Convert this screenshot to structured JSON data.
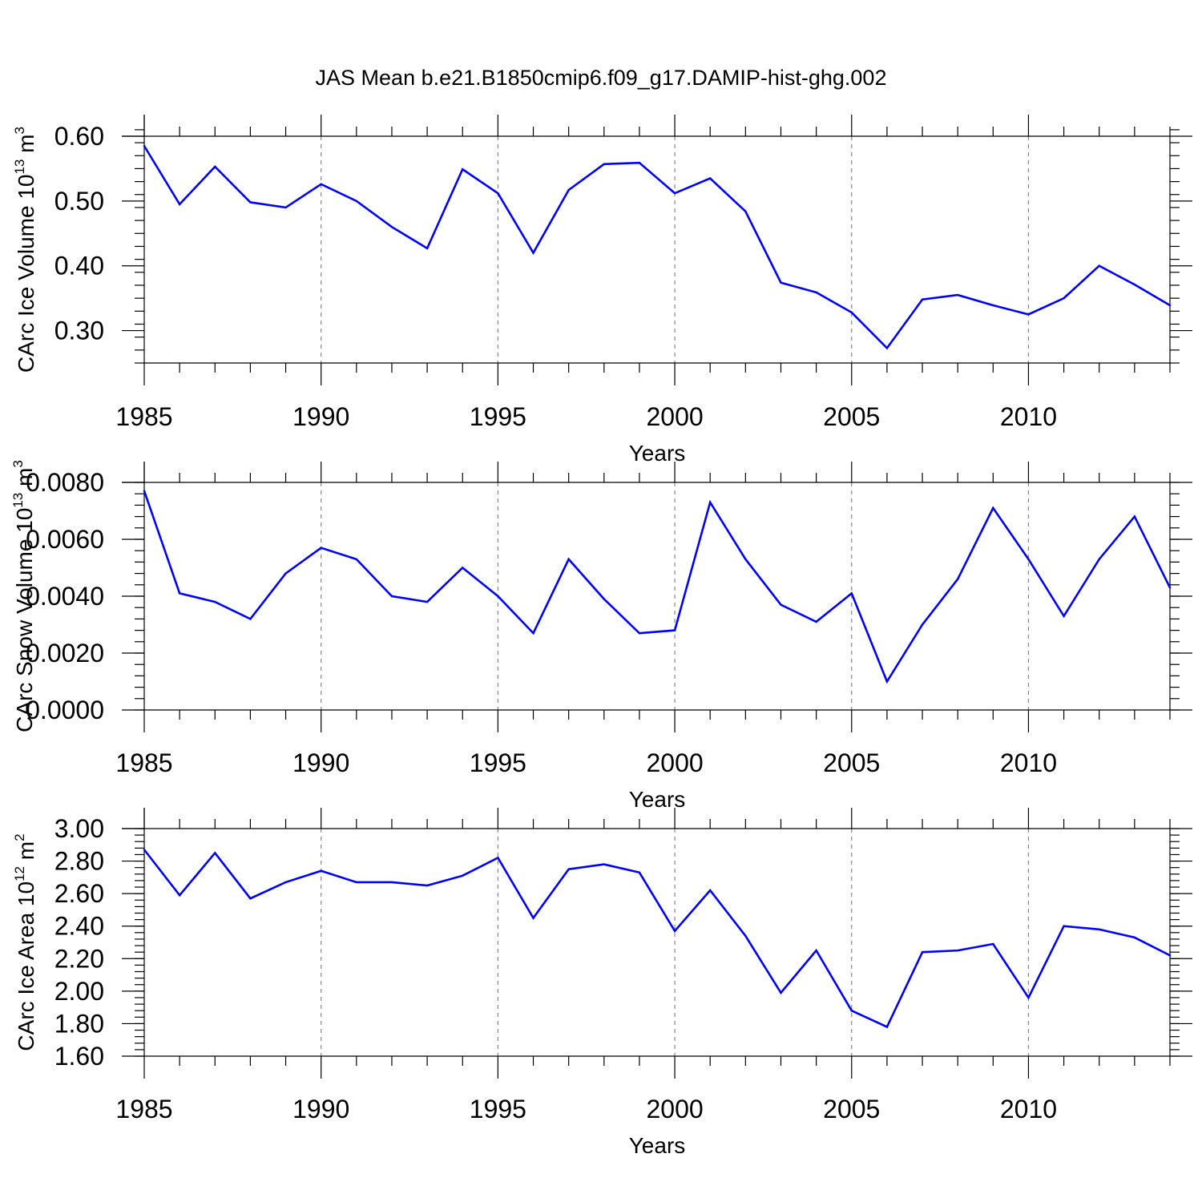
{
  "figure_title": "JAS Mean b.e21.B1850cmip6.f09_g17.DAMIP-hist-ghg.002",
  "colors": {
    "line": "#0000ff",
    "axis": "#000000",
    "grid": "#888888"
  },
  "chart_data": [
    {
      "type": "line",
      "title": "JAS Mean b.e21.B1850cmip6.f09_g17.DAMIP-hist-ghg.002",
      "xlabel": "Years",
      "ylabel": "CArc Ice Volume 10",
      "ylabel_exp": "13",
      "ylabel_unit": " m",
      "ylabel_unit_exp": "3",
      "xlim": [
        1985,
        2014
      ],
      "ylim": [
        0.25,
        0.6
      ],
      "yticks": [
        0.3,
        0.4,
        0.5,
        0.6
      ],
      "ytick_labels": [
        "0.30",
        "0.40",
        "0.50",
        "0.60"
      ],
      "yminor_step": 0.02,
      "xticks": [
        1985,
        1990,
        1995,
        2000,
        2005,
        2010
      ],
      "xtick_labels": [
        "1985",
        "1990",
        "1995",
        "2000",
        "2005",
        "2010"
      ],
      "grid": "vertical dashed at major x ticks",
      "x": [
        1985,
        1986,
        1987,
        1988,
        1989,
        1990,
        1991,
        1992,
        1993,
        1994,
        1995,
        1996,
        1997,
        1998,
        1999,
        2000,
        2001,
        2002,
        2003,
        2004,
        2005,
        2006,
        2007,
        2008,
        2009,
        2010,
        2011,
        2012,
        2013,
        2014
      ],
      "series": [
        {
          "name": "CArc Ice Volume",
          "values": [
            0.585,
            0.495,
            0.553,
            0.498,
            0.49,
            0.526,
            0.5,
            0.46,
            0.427,
            0.549,
            0.512,
            0.42,
            0.517,
            0.557,
            0.559,
            0.512,
            0.535,
            0.484,
            0.374,
            0.359,
            0.328,
            0.273,
            0.348,
            0.355,
            0.339,
            0.325,
            0.35,
            0.4,
            0.371,
            0.339
          ]
        }
      ]
    },
    {
      "type": "line",
      "xlabel": "Years",
      "ylabel": "CArc Snow Volume 10",
      "ylabel_exp": "13",
      "ylabel_unit": " m",
      "ylabel_unit_exp": "3",
      "xlim": [
        1985,
        2014
      ],
      "ylim": [
        0.0,
        0.008
      ],
      "yticks": [
        0.0,
        0.002,
        0.004,
        0.006,
        0.008
      ],
      "ytick_labels": [
        "0.0000",
        "0.0020",
        "0.0040",
        "0.0060",
        "0.0080"
      ],
      "yminor_step": 0.0004,
      "ymax_extent": 0.0087,
      "xticks": [
        1985,
        1990,
        1995,
        2000,
        2005,
        2010
      ],
      "xtick_labels": [
        "1985",
        "1990",
        "1995",
        "2000",
        "2005",
        "2010"
      ],
      "grid": "vertical dashed at major x ticks",
      "x": [
        1985,
        1986,
        1987,
        1988,
        1989,
        1990,
        1991,
        1992,
        1993,
        1994,
        1995,
        1996,
        1997,
        1998,
        1999,
        2000,
        2001,
        2002,
        2003,
        2004,
        2005,
        2006,
        2007,
        2008,
        2009,
        2010,
        2011,
        2012,
        2013,
        2014
      ],
      "series": [
        {
          "name": "CArc Snow Volume",
          "values": [
            0.0077,
            0.0041,
            0.0038,
            0.0032,
            0.0048,
            0.0057,
            0.0053,
            0.004,
            0.0038,
            0.005,
            0.004,
            0.0027,
            0.0053,
            0.0039,
            0.0027,
            0.0028,
            0.0073,
            0.0053,
            0.0037,
            0.0031,
            0.0041,
            0.001,
            0.003,
            0.0046,
            0.0071,
            0.0053,
            0.0033,
            0.0053,
            0.0068,
            0.0043
          ]
        }
      ]
    },
    {
      "type": "line",
      "xlabel": "Years",
      "ylabel": "CArc Ice Area 10",
      "ylabel_exp": "12",
      "ylabel_unit": " m",
      "ylabel_unit_exp": "2",
      "xlim": [
        1985,
        2014
      ],
      "ylim": [
        1.6,
        3.0
      ],
      "yticks": [
        1.6,
        1.8,
        2.0,
        2.2,
        2.4,
        2.6,
        2.8,
        3.0
      ],
      "ytick_labels": [
        "1.60",
        "1.80",
        "2.00",
        "2.20",
        "2.40",
        "2.60",
        "2.80",
        "3.00"
      ],
      "yminor_step": 0.04,
      "ymax_extent": 3.13,
      "xticks": [
        1985,
        1990,
        1995,
        2000,
        2005,
        2010
      ],
      "xtick_labels": [
        "1985",
        "1990",
        "1995",
        "2000",
        "2005",
        "2010"
      ],
      "grid": "vertical dashed at major x ticks",
      "x": [
        1985,
        1986,
        1987,
        1988,
        1989,
        1990,
        1991,
        1992,
        1993,
        1994,
        1995,
        1996,
        1997,
        1998,
        1999,
        2000,
        2001,
        2002,
        2003,
        2004,
        2005,
        2006,
        2007,
        2008,
        2009,
        2010,
        2011,
        2012,
        2013,
        2014
      ],
      "series": [
        {
          "name": "CArc Ice Area",
          "values": [
            2.87,
            2.59,
            2.85,
            2.57,
            2.67,
            2.74,
            2.67,
            2.67,
            2.65,
            2.71,
            2.82,
            2.45,
            2.75,
            2.78,
            2.73,
            2.37,
            2.62,
            2.34,
            1.99,
            2.25,
            1.88,
            1.78,
            2.24,
            2.25,
            2.29,
            1.96,
            2.4,
            2.38,
            2.33,
            2.22
          ]
        }
      ]
    }
  ]
}
